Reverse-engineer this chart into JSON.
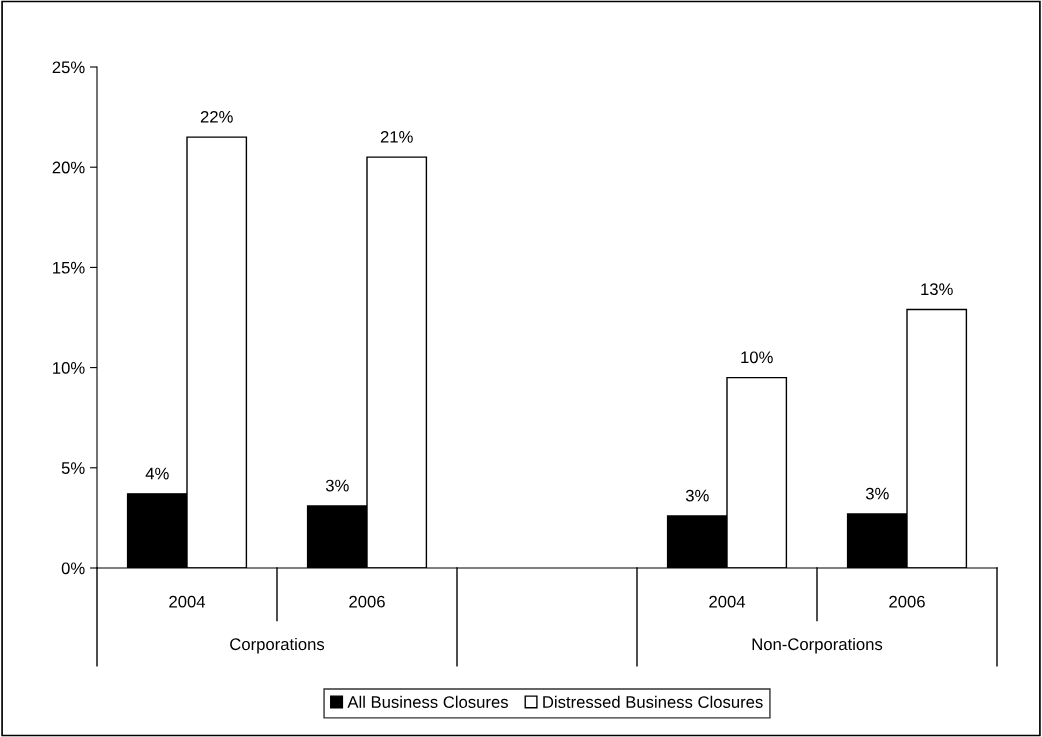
{
  "chart_data": {
    "type": "bar",
    "categories": [
      "2004",
      "2006",
      null,
      "2004",
      "2006"
    ],
    "series": [
      {
        "name": "All Business Closures",
        "color": "#000000",
        "values": [
          3.7,
          3.1,
          null,
          2.6,
          2.7
        ],
        "value_labels": [
          "4%",
          "3%",
          null,
          "3%",
          "3%"
        ]
      },
      {
        "name": "Distressed Business Closures",
        "color": "#ffffff",
        "values": [
          21.5,
          20.5,
          null,
          9.5,
          12.9
        ],
        "value_labels": [
          "22%",
          "21%",
          null,
          "10%",
          "13%"
        ]
      }
    ],
    "annotations": [
      "Corporations",
      "Non-Corporations"
    ],
    "ylim": [
      0,
      25
    ],
    "yticks": [
      {
        "value": 0,
        "label": "0%"
      },
      {
        "value": 5,
        "label": "5%"
      },
      {
        "value": 10,
        "label": "10%"
      },
      {
        "value": 15,
        "label": "15%"
      },
      {
        "value": 20,
        "label": "20%"
      },
      {
        "value": 25,
        "label": "25%"
      }
    ],
    "legend": "bottom"
  }
}
